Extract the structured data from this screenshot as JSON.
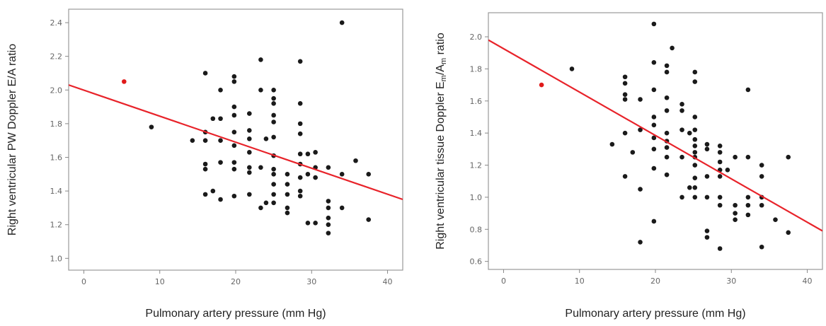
{
  "chart_data": [
    {
      "type": "scatter",
      "xlabel": "Pulmonary artery pressure (mm Hg)",
      "ylabel": "Right ventricular PW Doppler E/A ratio",
      "ylabel_parts": [
        {
          "t": "Right ventricular PW Doppler E/A ratio",
          "sub": false
        }
      ],
      "xlim": [
        -2,
        42
      ],
      "ylim": [
        0.93,
        2.48
      ],
      "xticks": [
        0,
        10,
        20,
        30,
        40
      ],
      "xtick_labels": [
        "0",
        "10",
        "20",
        "30",
        "40"
      ],
      "yticks": [
        1.0,
        1.2,
        1.4,
        1.6,
        1.8,
        2.0,
        2.2,
        2.4
      ],
      "ytick_labels": [
        "1.0",
        "1.2",
        "1.4",
        "1.6",
        "1.8",
        "2.0",
        "2.2",
        "2.4"
      ],
      "fit_line": {
        "x": [
          -2,
          42
        ],
        "y": [
          2.03,
          1.35
        ],
        "color": "#e8232a"
      },
      "highlight_points": [
        [
          5.3,
          2.05
        ]
      ],
      "highlight_color": "#e01a1a",
      "points": [
        [
          8.9,
          1.78
        ],
        [
          14.3,
          1.7
        ],
        [
          16.0,
          2.1
        ],
        [
          16.0,
          1.75
        ],
        [
          16.0,
          1.7
        ],
        [
          16.0,
          1.56
        ],
        [
          16.0,
          1.53
        ],
        [
          16.0,
          1.38
        ],
        [
          17.0,
          1.83
        ],
        [
          17.0,
          1.4
        ],
        [
          18.0,
          2.0
        ],
        [
          18.0,
          1.83
        ],
        [
          18.0,
          1.7
        ],
        [
          18.0,
          1.57
        ],
        [
          18.0,
          1.35
        ],
        [
          19.8,
          2.08
        ],
        [
          19.8,
          2.05
        ],
        [
          19.8,
          1.9
        ],
        [
          19.8,
          1.85
        ],
        [
          19.8,
          1.75
        ],
        [
          19.8,
          1.67
        ],
        [
          19.8,
          1.57
        ],
        [
          19.8,
          1.53
        ],
        [
          19.8,
          1.37
        ],
        [
          21.8,
          1.86
        ],
        [
          21.8,
          1.76
        ],
        [
          21.8,
          1.71
        ],
        [
          21.8,
          1.63
        ],
        [
          21.8,
          1.54
        ],
        [
          21.8,
          1.51
        ],
        [
          21.8,
          1.38
        ],
        [
          23.3,
          2.18
        ],
        [
          23.3,
          2.0
        ],
        [
          23.3,
          1.54
        ],
        [
          23.3,
          1.3
        ],
        [
          24.0,
          1.71
        ],
        [
          24.0,
          1.33
        ],
        [
          25.0,
          2.0
        ],
        [
          25.0,
          1.95
        ],
        [
          25.0,
          1.92
        ],
        [
          25.0,
          1.85
        ],
        [
          25.0,
          1.81
        ],
        [
          25.0,
          1.72
        ],
        [
          25.0,
          1.61
        ],
        [
          25.0,
          1.53
        ],
        [
          25.0,
          1.5
        ],
        [
          25.0,
          1.44
        ],
        [
          25.0,
          1.38
        ],
        [
          25.0,
          1.33
        ],
        [
          26.8,
          1.5
        ],
        [
          26.8,
          1.44
        ],
        [
          26.8,
          1.38
        ],
        [
          26.8,
          1.3
        ],
        [
          26.8,
          1.27
        ],
        [
          28.5,
          2.17
        ],
        [
          28.5,
          1.92
        ],
        [
          28.5,
          1.8
        ],
        [
          28.5,
          1.74
        ],
        [
          28.5,
          1.62
        ],
        [
          28.5,
          1.56
        ],
        [
          28.5,
          1.48
        ],
        [
          28.5,
          1.4
        ],
        [
          28.5,
          1.37
        ],
        [
          29.5,
          1.62
        ],
        [
          29.5,
          1.5
        ],
        [
          29.5,
          1.21
        ],
        [
          30.5,
          1.63
        ],
        [
          30.5,
          1.54
        ],
        [
          30.5,
          1.48
        ],
        [
          30.5,
          1.21
        ],
        [
          32.2,
          1.54
        ],
        [
          32.2,
          1.34
        ],
        [
          32.2,
          1.3
        ],
        [
          32.2,
          1.24
        ],
        [
          32.2,
          1.2
        ],
        [
          32.2,
          1.15
        ],
        [
          34.0,
          2.4
        ],
        [
          34.0,
          1.5
        ],
        [
          34.0,
          1.3
        ],
        [
          35.8,
          1.58
        ],
        [
          37.5,
          1.5
        ],
        [
          37.5,
          1.23
        ]
      ]
    },
    {
      "type": "scatter",
      "xlabel": "Pulmonary artery pressure (mm Hg)",
      "ylabel": "Right ventricular tissue Doppler Em/Am ratio",
      "ylabel_parts": [
        {
          "t": "Right ventricular tissue Doppler E",
          "sub": false
        },
        {
          "t": "m",
          "sub": true
        },
        {
          "t": "/A",
          "sub": false
        },
        {
          "t": "m",
          "sub": true
        },
        {
          "t": " ratio",
          "sub": false
        }
      ],
      "xlim": [
        -2,
        42
      ],
      "ylim": [
        0.55,
        2.15
      ],
      "xticks": [
        0,
        10,
        20,
        30,
        40
      ],
      "xtick_labels": [
        "0",
        "10",
        "20",
        "30",
        "40"
      ],
      "yticks": [
        0.6,
        0.8,
        1.0,
        1.2,
        1.4,
        1.6,
        1.8,
        2.0
      ],
      "ytick_labels": [
        "0.6",
        "0.8",
        "1.0",
        "1.2",
        "1.4",
        "1.6",
        "1.8",
        "2.0"
      ],
      "fit_line": {
        "x": [
          -2,
          42
        ],
        "y": [
          1.98,
          0.79
        ],
        "color": "#e8232a"
      },
      "highlight_points": [
        [
          5.0,
          1.7
        ]
      ],
      "highlight_color": "#e01a1a",
      "points": [
        [
          9.0,
          1.8
        ],
        [
          14.3,
          1.33
        ],
        [
          16.0,
          1.75
        ],
        [
          16.0,
          1.71
        ],
        [
          16.0,
          1.64
        ],
        [
          16.0,
          1.61
        ],
        [
          16.0,
          1.4
        ],
        [
          16.0,
          1.13
        ],
        [
          17.0,
          1.28
        ],
        [
          18.0,
          1.61
        ],
        [
          18.0,
          1.42
        ],
        [
          18.0,
          1.05
        ],
        [
          18.0,
          0.72
        ],
        [
          19.8,
          2.08
        ],
        [
          19.8,
          1.84
        ],
        [
          19.8,
          1.67
        ],
        [
          19.8,
          1.5
        ],
        [
          19.8,
          1.45
        ],
        [
          19.8,
          1.37
        ],
        [
          19.8,
          1.3
        ],
        [
          19.8,
          1.18
        ],
        [
          19.8,
          0.85
        ],
        [
          21.5,
          1.82
        ],
        [
          21.5,
          1.78
        ],
        [
          21.5,
          1.62
        ],
        [
          21.5,
          1.54
        ],
        [
          21.5,
          1.4
        ],
        [
          21.5,
          1.35
        ],
        [
          21.5,
          1.31
        ],
        [
          21.5,
          1.25
        ],
        [
          21.5,
          1.14
        ],
        [
          22.2,
          1.93
        ],
        [
          23.5,
          1.58
        ],
        [
          23.5,
          1.54
        ],
        [
          23.5,
          1.42
        ],
        [
          23.5,
          1.25
        ],
        [
          23.5,
          1.0
        ],
        [
          24.5,
          1.4
        ],
        [
          24.5,
          1.06
        ],
        [
          25.2,
          1.78
        ],
        [
          25.2,
          1.72
        ],
        [
          25.2,
          1.5
        ],
        [
          25.2,
          1.42
        ],
        [
          25.2,
          1.36
        ],
        [
          25.2,
          1.32
        ],
        [
          25.2,
          1.28
        ],
        [
          25.2,
          1.25
        ],
        [
          25.2,
          1.2
        ],
        [
          25.2,
          1.12
        ],
        [
          25.2,
          1.06
        ],
        [
          25.2,
          1.0
        ],
        [
          26.8,
          1.33
        ],
        [
          26.8,
          1.3
        ],
        [
          26.8,
          1.13
        ],
        [
          26.8,
          1.0
        ],
        [
          26.8,
          0.79
        ],
        [
          26.8,
          0.75
        ],
        [
          28.5,
          1.32
        ],
        [
          28.5,
          1.28
        ],
        [
          28.5,
          1.22
        ],
        [
          28.5,
          1.17
        ],
        [
          28.5,
          1.13
        ],
        [
          28.5,
          1.0
        ],
        [
          28.5,
          0.95
        ],
        [
          28.5,
          0.68
        ],
        [
          29.5,
          1.17
        ],
        [
          30.5,
          1.25
        ],
        [
          30.5,
          0.95
        ],
        [
          30.5,
          0.9
        ],
        [
          30.5,
          0.86
        ],
        [
          32.2,
          1.67
        ],
        [
          32.2,
          1.25
        ],
        [
          32.2,
          1.0
        ],
        [
          32.2,
          0.95
        ],
        [
          32.2,
          0.89
        ],
        [
          34.0,
          1.2
        ],
        [
          34.0,
          1.13
        ],
        [
          34.0,
          1.0
        ],
        [
          34.0,
          0.95
        ],
        [
          34.0,
          0.69
        ],
        [
          35.8,
          0.86
        ],
        [
          37.5,
          1.25
        ],
        [
          37.5,
          0.78
        ]
      ]
    }
  ]
}
